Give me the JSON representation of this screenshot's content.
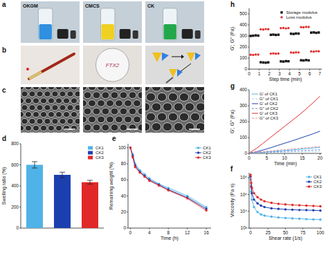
{
  "figure": {
    "panel_a": {
      "letter": "a",
      "labels": [
        "OKGM",
        "CMCS",
        "CK"
      ]
    },
    "panel_b": {
      "letter": "b",
      "dish_text": "FTX2"
    },
    "panel_c": {
      "letter": "c"
    }
  },
  "chart_data": [
    {
      "panel": "d",
      "type": "bar",
      "y_label": "Swelling ratio (%)",
      "categories": [
        "CK1",
        "CK2",
        "CK3"
      ],
      "values": [
        600,
        505,
        435
      ],
      "errors": [
        30,
        25,
        18
      ],
      "colors": [
        "#4fb3e8",
        "#1c3fb0",
        "#e02828"
      ],
      "ylim": [
        0,
        800
      ],
      "yticks": [
        0,
        200,
        400,
        600,
        800
      ],
      "tick_labels": "y",
      "legend": "upper right"
    },
    {
      "panel": "e",
      "type": "line",
      "x_label": "Time (h)",
      "y_label": "Remaining weight (%)",
      "x": [
        0,
        0.5,
        1,
        2,
        3,
        4,
        6,
        8,
        12,
        16
      ],
      "series": [
        {
          "name": "CK1",
          "color": "#4fb3e8",
          "values": [
            100,
            92,
            80,
            72,
            67,
            62,
            55,
            50,
            40,
            26
          ]
        },
        {
          "name": "CK2",
          "color": "#1c3fb0",
          "values": [
            100,
            90,
            78,
            70,
            65,
            60,
            54,
            48,
            38,
            24
          ]
        },
        {
          "name": "CK3",
          "color": "#e02828",
          "values": [
            100,
            88,
            76,
            69,
            64,
            59,
            53,
            47,
            37,
            22
          ]
        }
      ],
      "xlim": [
        -0.5,
        17
      ],
      "xticks": [
        0,
        4,
        8,
        12,
        16
      ],
      "ylim": [
        0,
        105
      ],
      "yticks": [
        0,
        20,
        40,
        60,
        80,
        100
      ],
      "marker": "circle",
      "legend": "upper right"
    },
    {
      "panel": "f",
      "type": "line",
      "x_label": "Shear rate (1/s)",
      "y_label": "Viscosity (Pa·s)",
      "log": "y",
      "x": [
        0.1,
        1,
        2,
        5,
        10,
        15,
        20,
        30,
        40,
        50,
        60,
        70,
        80,
        90,
        100
      ],
      "series": [
        {
          "name": "CK1",
          "color": "#4fb3e8",
          "values": [
            800000,
            150000,
            50000,
            18000,
            9000,
            6500,
            5500,
            4800,
            4300,
            4000,
            3800,
            3600,
            3400,
            3300,
            3200
          ]
        },
        {
          "name": "CK2",
          "color": "#1c3fb0",
          "values": [
            1200000,
            300000,
            120000,
            50000,
            30000,
            22000,
            18000,
            15000,
            14000,
            13000,
            12500,
            12000,
            11800,
            11500,
            11000
          ]
        },
        {
          "name": "CK3",
          "color": "#e02828",
          "values": [
            1500000,
            500000,
            250000,
            120000,
            70000,
            50000,
            40000,
            32000,
            28000,
            26000,
            24000,
            23000,
            22000,
            21000,
            20000
          ]
        }
      ],
      "xlim": [
        -2,
        102
      ],
      "xticks": [
        0,
        25,
        50,
        75,
        100
      ],
      "ylim": [
        1000,
        2000000
      ],
      "yticks": [
        {
          "value": 1000,
          "label": "10³"
        },
        {
          "value": 10000,
          "label": "10⁴"
        },
        {
          "value": 100000,
          "label": "10⁵"
        },
        {
          "value": 1000000,
          "label": "10⁶"
        }
      ],
      "marker": "circle",
      "legend": "upper right"
    },
    {
      "panel": "g",
      "type": "line",
      "x_label": "Time (min)",
      "y_label": "G', G'' (Pa)",
      "x": [
        0,
        2,
        4,
        6,
        8,
        10,
        12,
        14,
        16,
        18,
        20
      ],
      "series": [
        {
          "name": "G' of CK1",
          "color": "#4fb3e8",
          "values": [
            2,
            5,
            8,
            11,
            15,
            18,
            22,
            26,
            30,
            34,
            38
          ]
        },
        {
          "name": "G'' of CK1",
          "color": "#9fd6f2",
          "line_style": "dashed",
          "values": [
            3,
            4,
            5,
            6,
            7,
            8,
            9,
            10,
            11,
            12,
            13
          ]
        },
        {
          "name": "G' of CK2",
          "color": "#1c3fb0",
          "values": [
            2,
            10,
            22,
            35,
            50,
            64,
            78,
            93,
            108,
            123,
            140
          ]
        },
        {
          "name": "G'' of CK2",
          "color": "#6f86d6",
          "line_style": "dashed",
          "values": [
            3,
            5,
            7,
            9,
            11,
            13,
            15,
            17,
            19,
            21,
            23
          ]
        },
        {
          "name": "G' of CK3",
          "color": "#e02828",
          "values": [
            3,
            30,
            65,
            100,
            135,
            170,
            205,
            240,
            278,
            318,
            360
          ]
        },
        {
          "name": "G'' of CK3",
          "color": "#f08c8c",
          "line_style": "dashed",
          "values": [
            4,
            8,
            12,
            16,
            20,
            24,
            28,
            32,
            36,
            40,
            44
          ]
        }
      ],
      "xlim": [
        0,
        20.5
      ],
      "xticks": [
        0,
        5,
        10,
        15,
        20
      ],
      "ylim": [
        0,
        400
      ],
      "yticks": [
        0,
        100,
        200,
        300,
        400
      ],
      "marker": "none",
      "legend": "upper left"
    },
    {
      "panel": "h",
      "type": "scatter",
      "x_label": "Step time (min)",
      "y_label": "G', G'' (Pa)",
      "x": [
        0.15,
        0.4,
        0.65,
        0.9,
        1.15,
        1.4,
        1.65,
        1.9,
        2.15,
        2.4,
        2.65,
        2.9,
        3.15,
        3.4,
        3.65,
        3.9,
        4.15,
        4.4,
        4.65,
        4.9,
        5.15,
        5.4,
        5.65,
        5.9,
        6.15,
        6.4,
        6.65,
        6.9
      ],
      "series": [
        {
          "name": "Storage modulus",
          "color": "#111111",
          "marker": "square",
          "values": [
            300,
            302,
            305,
            303,
            62,
            60,
            58,
            61,
            310,
            312,
            309,
            311,
            70,
            68,
            72,
            71,
            320,
            318,
            322,
            321,
            80,
            78,
            82,
            79,
            330,
            332,
            328,
            331
          ]
        },
        {
          "name": "Loss modulus",
          "color": "#e03030",
          "marker": "circle",
          "values": [
            130,
            128,
            132,
            131,
            360,
            358,
            362,
            361,
            140,
            142,
            139,
            141,
            370,
            372,
            368,
            371,
            150,
            148,
            152,
            151,
            380,
            378,
            382,
            381,
            160,
            158,
            162,
            161
          ]
        }
      ],
      "xlim": [
        0,
        7.2
      ],
      "xticks": [
        0,
        1,
        2,
        3,
        4,
        5,
        6,
        7
      ],
      "ylim": [
        0,
        550
      ],
      "yticks": [
        0,
        100,
        200,
        300,
        400,
        500
      ],
      "legend": "upper right"
    }
  ]
}
